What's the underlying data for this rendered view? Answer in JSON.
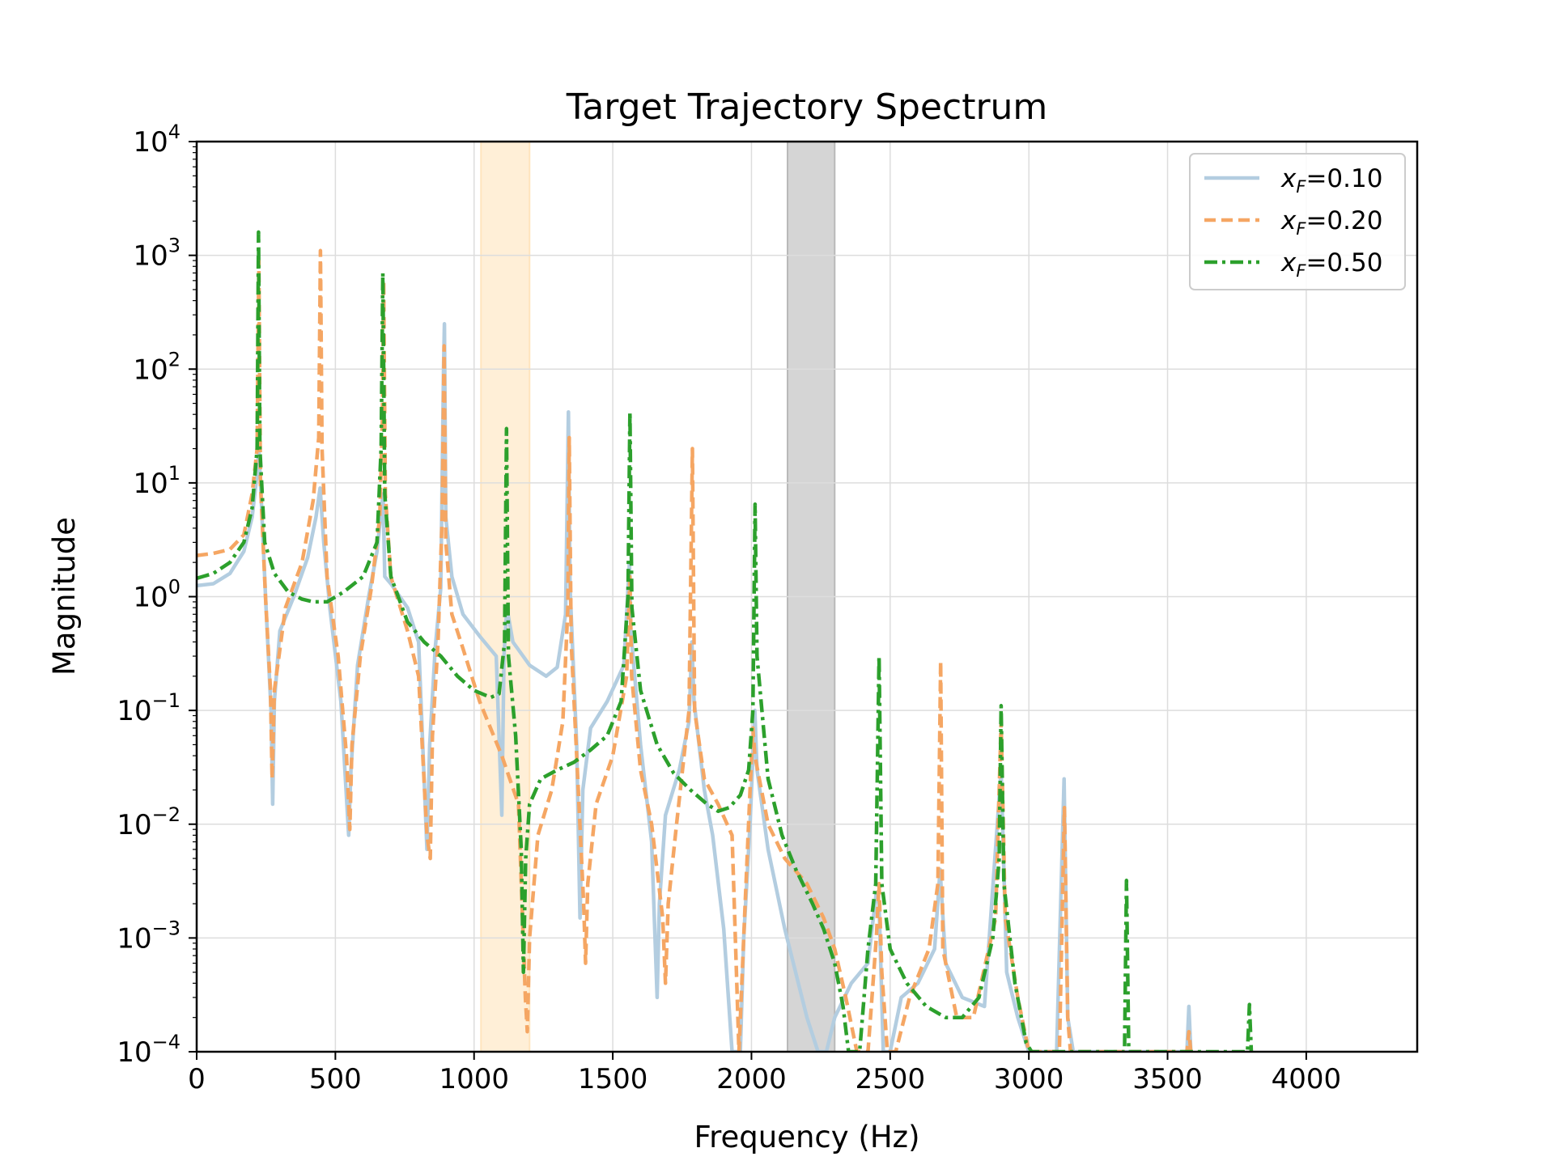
{
  "chart_data": {
    "type": "line",
    "title": "Target Trajectory Spectrum",
    "xlabel": "Frequency (Hz)",
    "ylabel": "Magnitude",
    "xlim": [
      0,
      4400
    ],
    "ylim": [
      0.0001,
      10000
    ],
    "yscale": "log",
    "grid": true,
    "legend_position": "top-right",
    "x_ticks": [
      0,
      500,
      1000,
      1500,
      2000,
      2500,
      3000,
      3500,
      4000
    ],
    "y_tick_base": "10",
    "y_tick_exponents": [
      4,
      3,
      2,
      1,
      0,
      -1,
      -2,
      -3,
      -4
    ],
    "shaded_bands": [
      {
        "x0": 1025,
        "x1": 1200,
        "color": "#ffe4bd"
      },
      {
        "x0": 2130,
        "x1": 2300,
        "color": "#b9b9b9"
      }
    ],
    "series": [
      {
        "name": "x_F=0.10",
        "legend_var": "x",
        "legend_sub": "F",
        "legend_val": "=0.10",
        "color": "#b3cde0",
        "dash": "solid",
        "points": [
          [
            0,
            1.25
          ],
          [
            60,
            1.3
          ],
          [
            120,
            1.6
          ],
          [
            170,
            2.5
          ],
          [
            200,
            5
          ],
          [
            218,
            12
          ],
          [
            224,
            20
          ],
          [
            232,
            8
          ],
          [
            250,
            0.8
          ],
          [
            268,
            0.1
          ],
          [
            274,
            0.015
          ],
          [
            280,
            0.12
          ],
          [
            300,
            0.5
          ],
          [
            350,
            1.0
          ],
          [
            400,
            2.2
          ],
          [
            430,
            5
          ],
          [
            445,
            9
          ],
          [
            458,
            3
          ],
          [
            480,
            0.8
          ],
          [
            520,
            0.12
          ],
          [
            548,
            0.008
          ],
          [
            556,
            0.03
          ],
          [
            580,
            0.25
          ],
          [
            620,
            1.0
          ],
          [
            650,
            2.5
          ],
          [
            672,
            8
          ],
          [
            678,
            1.5
          ],
          [
            700,
            1.3
          ],
          [
            760,
            0.8
          ],
          [
            800,
            0.4
          ],
          [
            830,
            0.006
          ],
          [
            840,
            0.05
          ],
          [
            860,
            0.35
          ],
          [
            880,
            1.2
          ],
          [
            890,
            100
          ],
          [
            893,
            250
          ],
          [
            898,
            5
          ],
          [
            920,
            1.5
          ],
          [
            960,
            0.7
          ],
          [
            1020,
            0.45
          ],
          [
            1080,
            0.3
          ],
          [
            1100,
            0.012
          ],
          [
            1108,
            0.3
          ],
          [
            1118,
            0.8
          ],
          [
            1140,
            0.4
          ],
          [
            1200,
            0.25
          ],
          [
            1260,
            0.2
          ],
          [
            1300,
            0.24
          ],
          [
            1330,
            0.7
          ],
          [
            1340,
            42
          ],
          [
            1346,
            1.2
          ],
          [
            1370,
            0.05
          ],
          [
            1382,
            0.0015
          ],
          [
            1392,
            0.02
          ],
          [
            1420,
            0.07
          ],
          [
            1480,
            0.12
          ],
          [
            1540,
            0.25
          ],
          [
            1560,
            2
          ],
          [
            1565,
            0.5
          ],
          [
            1600,
            0.05
          ],
          [
            1640,
            0.007
          ],
          [
            1660,
            0.0003
          ],
          [
            1668,
            0.002
          ],
          [
            1690,
            0.012
          ],
          [
            1740,
            0.03
          ],
          [
            1775,
            0.08
          ],
          [
            1785,
            0.4
          ],
          [
            1793,
            0.12
          ],
          [
            1830,
            0.02
          ],
          [
            1860,
            0.008
          ],
          [
            1900,
            0.0012
          ],
          [
            1930,
            0.0001
          ],
          [
            1960,
            0.0001
          ],
          [
            1972,
            0.001
          ],
          [
            1995,
            0.01
          ],
          [
            2012,
            0.1
          ],
          [
            2020,
            0.03
          ],
          [
            2060,
            0.006
          ],
          [
            2120,
            0.0012
          ],
          [
            2200,
            0.0002
          ],
          [
            2240,
            0.0001
          ],
          [
            2270,
            0.0001
          ],
          [
            2300,
            0.0002
          ],
          [
            2360,
            0.0004
          ],
          [
            2420,
            0.0006
          ],
          [
            2450,
            0.0025
          ],
          [
            2460,
            0.002
          ],
          [
            2475,
            0.0001
          ],
          [
            2500,
            0.0001
          ],
          [
            2540,
            0.0003
          ],
          [
            2600,
            0.0004
          ],
          [
            2660,
            0.0008
          ],
          [
            2680,
            0.004
          ],
          [
            2700,
            0.0006
          ],
          [
            2760,
            0.0003
          ],
          [
            2840,
            0.00025
          ],
          [
            2900,
            0.03
          ],
          [
            2920,
            0.0005
          ],
          [
            2960,
            0.0002
          ],
          [
            3000,
            0.0001
          ],
          [
            3100,
            0.0001
          ],
          [
            3127,
            0.025
          ],
          [
            3140,
            0.0002
          ],
          [
            3160,
            0.0001
          ],
          [
            3570,
            0.0001
          ],
          [
            3577,
            0.00025
          ],
          [
            3584,
            0.0001
          ]
        ]
      },
      {
        "name": "x_F=0.20",
        "legend_var": "x",
        "legend_sub": "F",
        "legend_val": "=0.20",
        "color": "#f5a663",
        "dash": "dashed",
        "points": [
          [
            0,
            2.3
          ],
          [
            60,
            2.4
          ],
          [
            120,
            2.6
          ],
          [
            170,
            3.5
          ],
          [
            200,
            8
          ],
          [
            218,
            20
          ],
          [
            224,
            900
          ],
          [
            230,
            10
          ],
          [
            248,
            1
          ],
          [
            266,
            0.15
          ],
          [
            272,
            0.025
          ],
          [
            280,
            0.15
          ],
          [
            320,
            0.8
          ],
          [
            380,
            2
          ],
          [
            420,
            7
          ],
          [
            440,
            25
          ],
          [
            446,
            1100
          ],
          [
            452,
            20
          ],
          [
            470,
            1.5
          ],
          [
            510,
            0.3
          ],
          [
            540,
            0.04
          ],
          [
            552,
            0.009
          ],
          [
            560,
            0.05
          ],
          [
            590,
            0.3
          ],
          [
            630,
            1.2
          ],
          [
            660,
            5
          ],
          [
            670,
            40
          ],
          [
            674,
            600
          ],
          [
            680,
            8
          ],
          [
            700,
            1.5
          ],
          [
            760,
            0.5
          ],
          [
            800,
            0.2
          ],
          [
            830,
            0.008
          ],
          [
            842,
            0.005
          ],
          [
            850,
            0.06
          ],
          [
            870,
            0.4
          ],
          [
            885,
            5
          ],
          [
            892,
            160
          ],
          [
            898,
            3
          ],
          [
            920,
            0.7
          ],
          [
            960,
            0.35
          ],
          [
            1020,
            0.12
          ],
          [
            1100,
            0.04
          ],
          [
            1160,
            0.015
          ],
          [
            1185,
            0.0003
          ],
          [
            1192,
            0.00015
          ],
          [
            1200,
            0.001
          ],
          [
            1230,
            0.008
          ],
          [
            1280,
            0.02
          ],
          [
            1320,
            0.08
          ],
          [
            1338,
            0.8
          ],
          [
            1343,
            25
          ],
          [
            1350,
            0.4
          ],
          [
            1370,
            0.04
          ],
          [
            1395,
            0.002
          ],
          [
            1402,
            0.0006
          ],
          [
            1410,
            0.003
          ],
          [
            1440,
            0.015
          ],
          [
            1500,
            0.04
          ],
          [
            1550,
            0.2
          ],
          [
            1562,
            1.5
          ],
          [
            1568,
            0.2
          ],
          [
            1600,
            0.03
          ],
          [
            1640,
            0.01
          ],
          [
            1680,
            0.0015
          ],
          [
            1690,
            0.0004
          ],
          [
            1700,
            0.002
          ],
          [
            1730,
            0.01
          ],
          [
            1775,
            0.1
          ],
          [
            1787,
            20
          ],
          [
            1795,
            0.1
          ],
          [
            1830,
            0.025
          ],
          [
            1880,
            0.015
          ],
          [
            1930,
            0.008
          ],
          [
            1955,
            0.0001
          ],
          [
            1975,
            0.0015
          ],
          [
            1995,
            0.02
          ],
          [
            2005,
            0.07
          ],
          [
            2012,
            0.04
          ],
          [
            2060,
            0.01
          ],
          [
            2120,
            0.005
          ],
          [
            2200,
            0.003
          ],
          [
            2260,
            0.0015
          ],
          [
            2300,
            0.0008
          ],
          [
            2340,
            0.0003
          ],
          [
            2380,
            0.0001
          ],
          [
            2420,
            0.0001
          ],
          [
            2450,
            0.001
          ],
          [
            2460,
            0.003
          ],
          [
            2470,
            0.0005
          ],
          [
            2490,
            0.0001
          ],
          [
            2520,
            0.0001
          ],
          [
            2570,
            0.0003
          ],
          [
            2640,
            0.0008
          ],
          [
            2672,
            0.003
          ],
          [
            2682,
            0.27
          ],
          [
            2690,
            0.0008
          ],
          [
            2740,
            0.0002
          ],
          [
            2800,
            0.0002
          ],
          [
            2880,
            0.0015
          ],
          [
            2900,
            0.08
          ],
          [
            2915,
            0.0015
          ],
          [
            2960,
            0.0003
          ],
          [
            3000,
            0.0001
          ],
          [
            3110,
            0.0001
          ],
          [
            3128,
            0.014
          ],
          [
            3140,
            0.0002
          ],
          [
            3150,
            0.0001
          ],
          [
            3570,
            0.0001
          ],
          [
            3577,
            0.00015
          ],
          [
            3584,
            0.0001
          ]
        ]
      },
      {
        "name": "x_F=0.50",
        "legend_var": "x",
        "legend_sub": "F",
        "legend_val": "=0.50",
        "color": "#2ca02c",
        "dash": "dashdot",
        "points": [
          [
            0,
            1.45
          ],
          [
            60,
            1.6
          ],
          [
            120,
            2
          ],
          [
            170,
            3
          ],
          [
            200,
            6
          ],
          [
            218,
            20
          ],
          [
            223,
            1600
          ],
          [
            228,
            20
          ],
          [
            245,
            3
          ],
          [
            280,
            1.6
          ],
          [
            330,
            1.1
          ],
          [
            380,
            0.95
          ],
          [
            420,
            0.9
          ],
          [
            470,
            0.9
          ],
          [
            530,
            1.1
          ],
          [
            600,
            1.5
          ],
          [
            650,
            3
          ],
          [
            665,
            20
          ],
          [
            671,
            700
          ],
          [
            678,
            8
          ],
          [
            700,
            1.5
          ],
          [
            760,
            0.6
          ],
          [
            820,
            0.4
          ],
          [
            880,
            0.3
          ],
          [
            940,
            0.2
          ],
          [
            1000,
            0.15
          ],
          [
            1060,
            0.13
          ],
          [
            1090,
            0.14
          ],
          [
            1110,
            0.4
          ],
          [
            1117,
            30
          ],
          [
            1124,
            0.3
          ],
          [
            1150,
            0.06
          ],
          [
            1170,
            0.006
          ],
          [
            1178,
            0.0005
          ],
          [
            1186,
            0.005
          ],
          [
            1200,
            0.015
          ],
          [
            1240,
            0.025
          ],
          [
            1300,
            0.03
          ],
          [
            1360,
            0.035
          ],
          [
            1420,
            0.045
          ],
          [
            1480,
            0.06
          ],
          [
            1530,
            0.12
          ],
          [
            1555,
            1
          ],
          [
            1562,
            42
          ],
          [
            1569,
            0.8
          ],
          [
            1600,
            0.15
          ],
          [
            1660,
            0.05
          ],
          [
            1720,
            0.028
          ],
          [
            1780,
            0.02
          ],
          [
            1840,
            0.015
          ],
          [
            1880,
            0.013
          ],
          [
            1920,
            0.014
          ],
          [
            1960,
            0.018
          ],
          [
            1990,
            0.03
          ],
          [
            2005,
            0.1
          ],
          [
            2013,
            6.5
          ],
          [
            2020,
            0.3
          ],
          [
            2060,
            0.025
          ],
          [
            2110,
            0.008
          ],
          [
            2160,
            0.004
          ],
          [
            2220,
            0.002
          ],
          [
            2260,
            0.0012
          ],
          [
            2300,
            0.0006
          ],
          [
            2330,
            0.00025
          ],
          [
            2350,
            0.0001
          ],
          [
            2390,
            0.0001
          ],
          [
            2420,
            0.0008
          ],
          [
            2448,
            0.003
          ],
          [
            2460,
            0.3
          ],
          [
            2470,
            0.003
          ],
          [
            2500,
            0.0008
          ],
          [
            2560,
            0.0004
          ],
          [
            2630,
            0.00025
          ],
          [
            2700,
            0.0002
          ],
          [
            2760,
            0.0002
          ],
          [
            2820,
            0.0003
          ],
          [
            2870,
            0.001
          ],
          [
            2893,
            0.005
          ],
          [
            2900,
            0.11
          ],
          [
            2910,
            0.003
          ],
          [
            2950,
            0.0004
          ],
          [
            2990,
            0.00012
          ],
          [
            3010,
            0.0001
          ],
          [
            3345,
            0.0001
          ],
          [
            3352,
            0.0032
          ],
          [
            3360,
            0.0001
          ],
          [
            3788,
            0.0001
          ],
          [
            3795,
            0.00026
          ],
          [
            3802,
            0.0001
          ]
        ]
      }
    ]
  }
}
